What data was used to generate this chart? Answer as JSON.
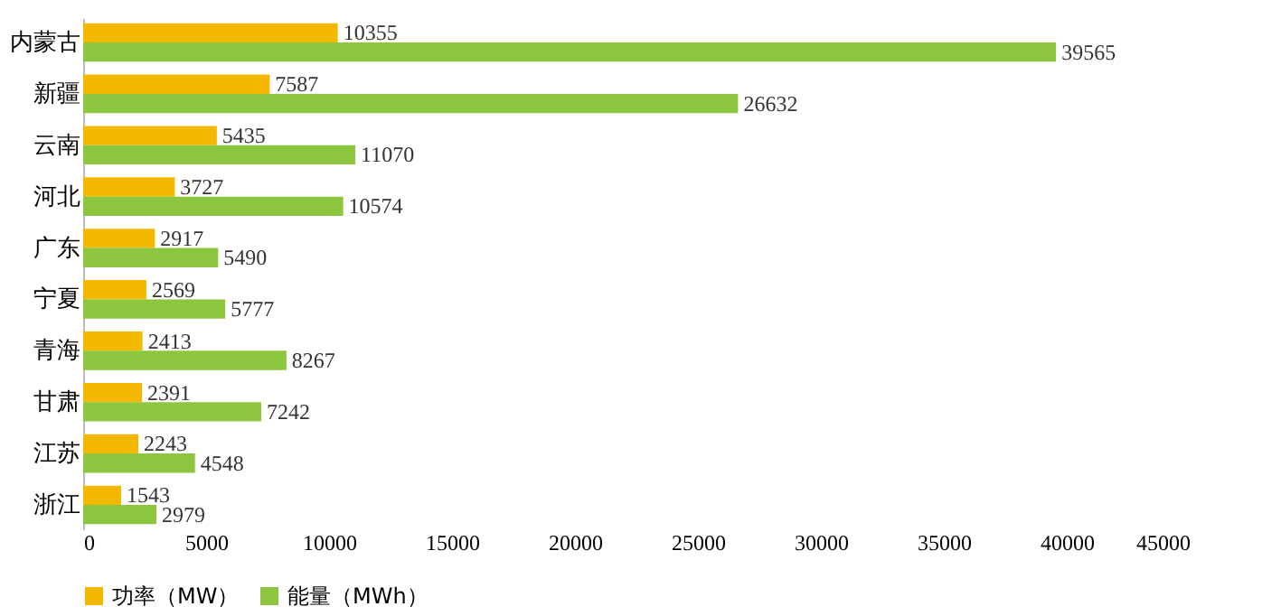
{
  "chart_data": {
    "type": "bar",
    "orientation": "horizontal",
    "categories": [
      "内蒙古",
      "新疆",
      "云南",
      "河北",
      "广东",
      "宁夏",
      "青海",
      "甘肃",
      "江苏",
      "浙江"
    ],
    "series": [
      {
        "name": "功率（MW）",
        "color": "#f5b800",
        "values": [
          10355,
          7587,
          5435,
          3727,
          2917,
          2569,
          2413,
          2391,
          2243,
          1543
        ]
      },
      {
        "name": "能量（MWh）",
        "color": "#8cc63f",
        "values": [
          39565,
          26632,
          11070,
          10574,
          5490,
          5777,
          8267,
          7242,
          4548,
          2979
        ]
      }
    ],
    "xlim": [
      0,
      45000
    ],
    "xticks": [
      0,
      5000,
      10000,
      15000,
      20000,
      25000,
      30000,
      35000,
      40000,
      45000
    ],
    "data_labels": true,
    "legend": "bottom",
    "grid": false
  }
}
